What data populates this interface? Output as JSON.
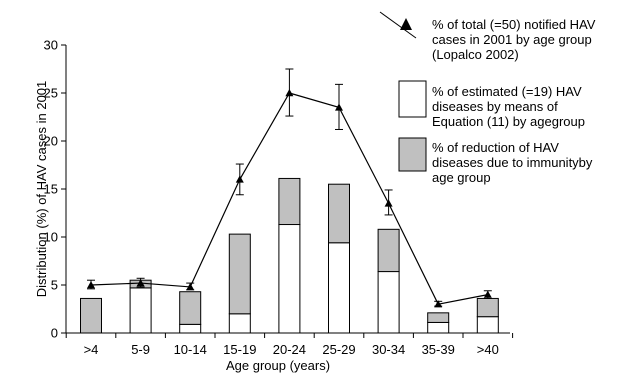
{
  "chart_data": {
    "type": "bar",
    "categories": [
      ">4",
      "5-9",
      "10-14",
      "15-19",
      "20-24",
      "25-29",
      "30-34",
      "35-39",
      ">40"
    ],
    "xlabel": "Age group (years)",
    "ylabel": "Distribution (%) of HAV cases in 2001",
    "ylim": [
      0,
      30
    ],
    "yticks": [
      0,
      5,
      10,
      15,
      20,
      25,
      30
    ],
    "grid": false,
    "legend_position": "top-right",
    "series": [
      {
        "name": "% of estimated (=19) HAV diseases by means of Equation (11) by agegroup",
        "kind": "bar-stack-bottom",
        "color": "#ffffff",
        "values": [
          0,
          4.7,
          0.9,
          2.0,
          11.3,
          9.4,
          6.4,
          1.1,
          1.7
        ]
      },
      {
        "name": "% of reduction of HAV diseases due to immunityby age group",
        "kind": "bar-stack-top",
        "color": "#c0c0c0",
        "values": [
          3.6,
          0.8,
          3.4,
          8.3,
          4.8,
          6.1,
          4.4,
          1.0,
          1.9
        ]
      },
      {
        "name": "% of total (=50) notified HAV cases in 2001 by age group (Lopalco 2002)",
        "kind": "line-markers",
        "color": "#000000",
        "values": [
          5.0,
          5.2,
          4.8,
          16.0,
          25.0,
          23.5,
          13.5,
          3.0,
          4.0
        ],
        "error_low": [
          4.6,
          4.8,
          4.5,
          14.4,
          22.6,
          21.2,
          12.3,
          2.8,
          3.6
        ],
        "error_high": [
          5.5,
          5.7,
          5.2,
          17.6,
          27.5,
          25.9,
          14.9,
          3.3,
          4.4
        ]
      }
    ]
  },
  "legend": {
    "items": [
      {
        "symbol": "triangle-line",
        "lines": [
          "% of total (=50) notified HAV",
          "cases in 2001 by age group",
          "(Lopalco 2002)"
        ]
      },
      {
        "symbol": "white-box",
        "lines": [
          "% of estimated (=19) HAV",
          "diseases by means of",
          "Equation (11) by agegroup"
        ]
      },
      {
        "symbol": "gray-box",
        "lines": [
          "% of reduction of HAV",
          "diseases due to immunityby",
          "age group"
        ]
      }
    ]
  }
}
